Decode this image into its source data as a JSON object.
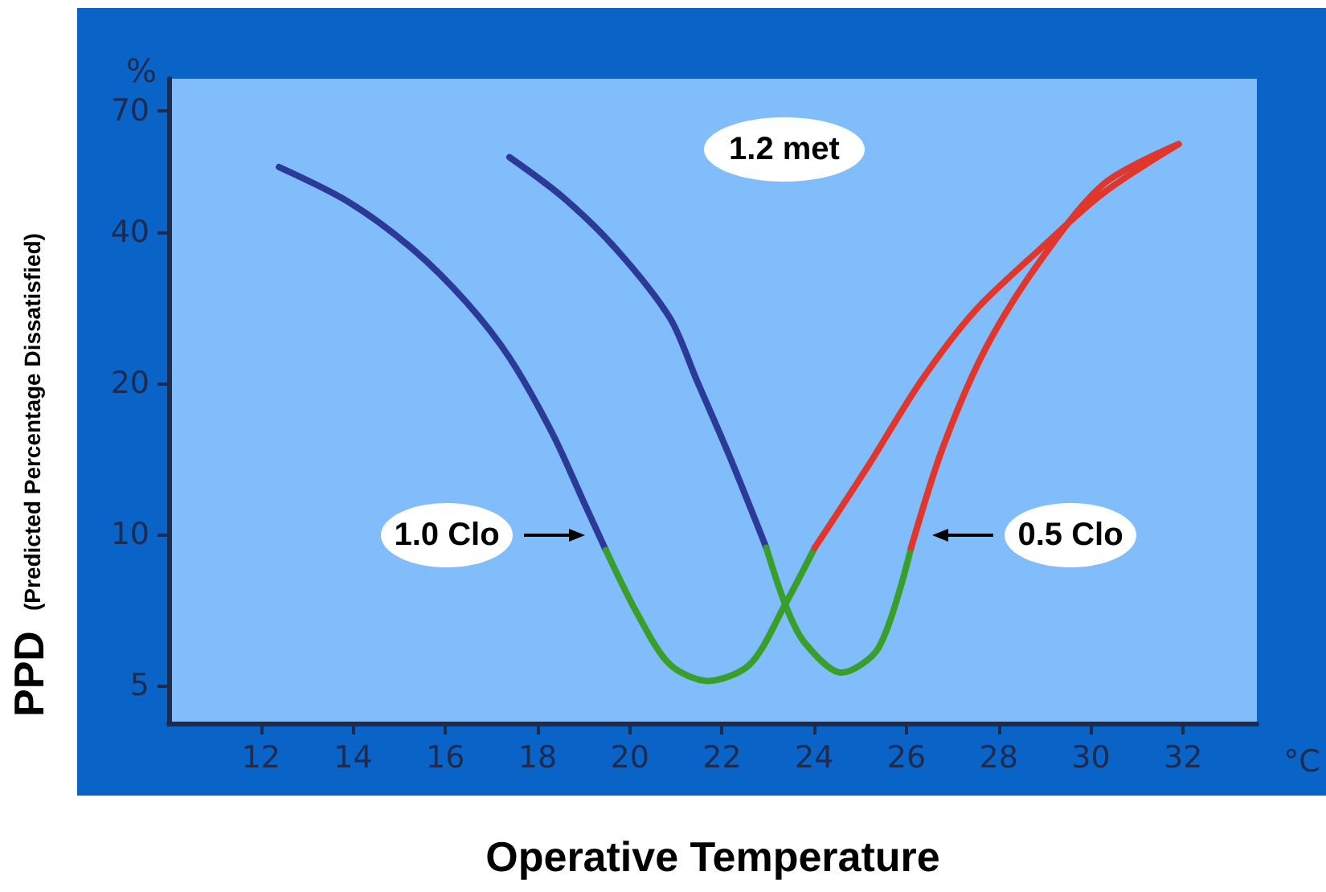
{
  "chart_data": {
    "type": "line",
    "xlabel": "Operative Temperature",
    "ylabel": "PPD (Predicted Percentage Dissatisfied)",
    "log": "y",
    "xlim": [
      10,
      33.6
    ],
    "xticks": [
      12,
      14,
      16,
      18,
      20,
      22,
      24,
      26,
      28,
      30,
      32
    ],
    "ylim": [
      4.2,
      81
    ],
    "yticks": [
      5,
      10,
      20,
      40,
      70
    ],
    "grid": false,
    "marker": "none",
    "line_style": "solid",
    "series": [
      {
        "color": "#2b3a96",
        "x": [
          12.39,
          13.9,
          15.3,
          16.46,
          17.39,
          18.32,
          19.0,
          19.48
        ],
        "values": [
          54,
          46,
          37,
          29,
          22.5,
          15.9,
          11.6,
          9.3
        ]
      },
      {
        "color": "#3a9e2a",
        "x": [
          19.48,
          20.18,
          20.87,
          21.69,
          22.6,
          23.37,
          24.01
        ],
        "values": [
          9.3,
          6.9,
          5.5,
          5.1,
          5.5,
          7.25,
          9.4
        ]
      },
      {
        "color": "#e0362c",
        "x": [
          24.01,
          25.17,
          26.33,
          27.5,
          28.89,
          30.28,
          31.9
        ],
        "values": [
          9.4,
          13.7,
          20.3,
          28,
          37,
          48,
          60
        ]
      },
      {
        "color": "#2b3a96",
        "x": [
          17.39,
          18.55,
          19.71,
          20.87,
          21.45,
          22.15,
          22.96
        ],
        "values": [
          56.5,
          47,
          37,
          27,
          20.3,
          14.4,
          9.4
        ]
      },
      {
        "color": "#3a9e2a",
        "x": [
          22.96,
          23.37,
          23.78,
          24.59,
          25.4,
          26.1
        ],
        "values": [
          9.4,
          7.25,
          6.1,
          5.3,
          5.95,
          9.4
        ]
      },
      {
        "color": "#e0362c",
        "x": [
          26.1,
          26.8,
          27.73,
          28.89,
          30.28,
          31.9
        ],
        "values": [
          9.4,
          15,
          23.6,
          35,
          50,
          60
        ]
      }
    ],
    "annotations": [
      "1.2 met",
      "%",
      "°C",
      "1.0 Clo",
      "0.5 Clo"
    ]
  }
}
